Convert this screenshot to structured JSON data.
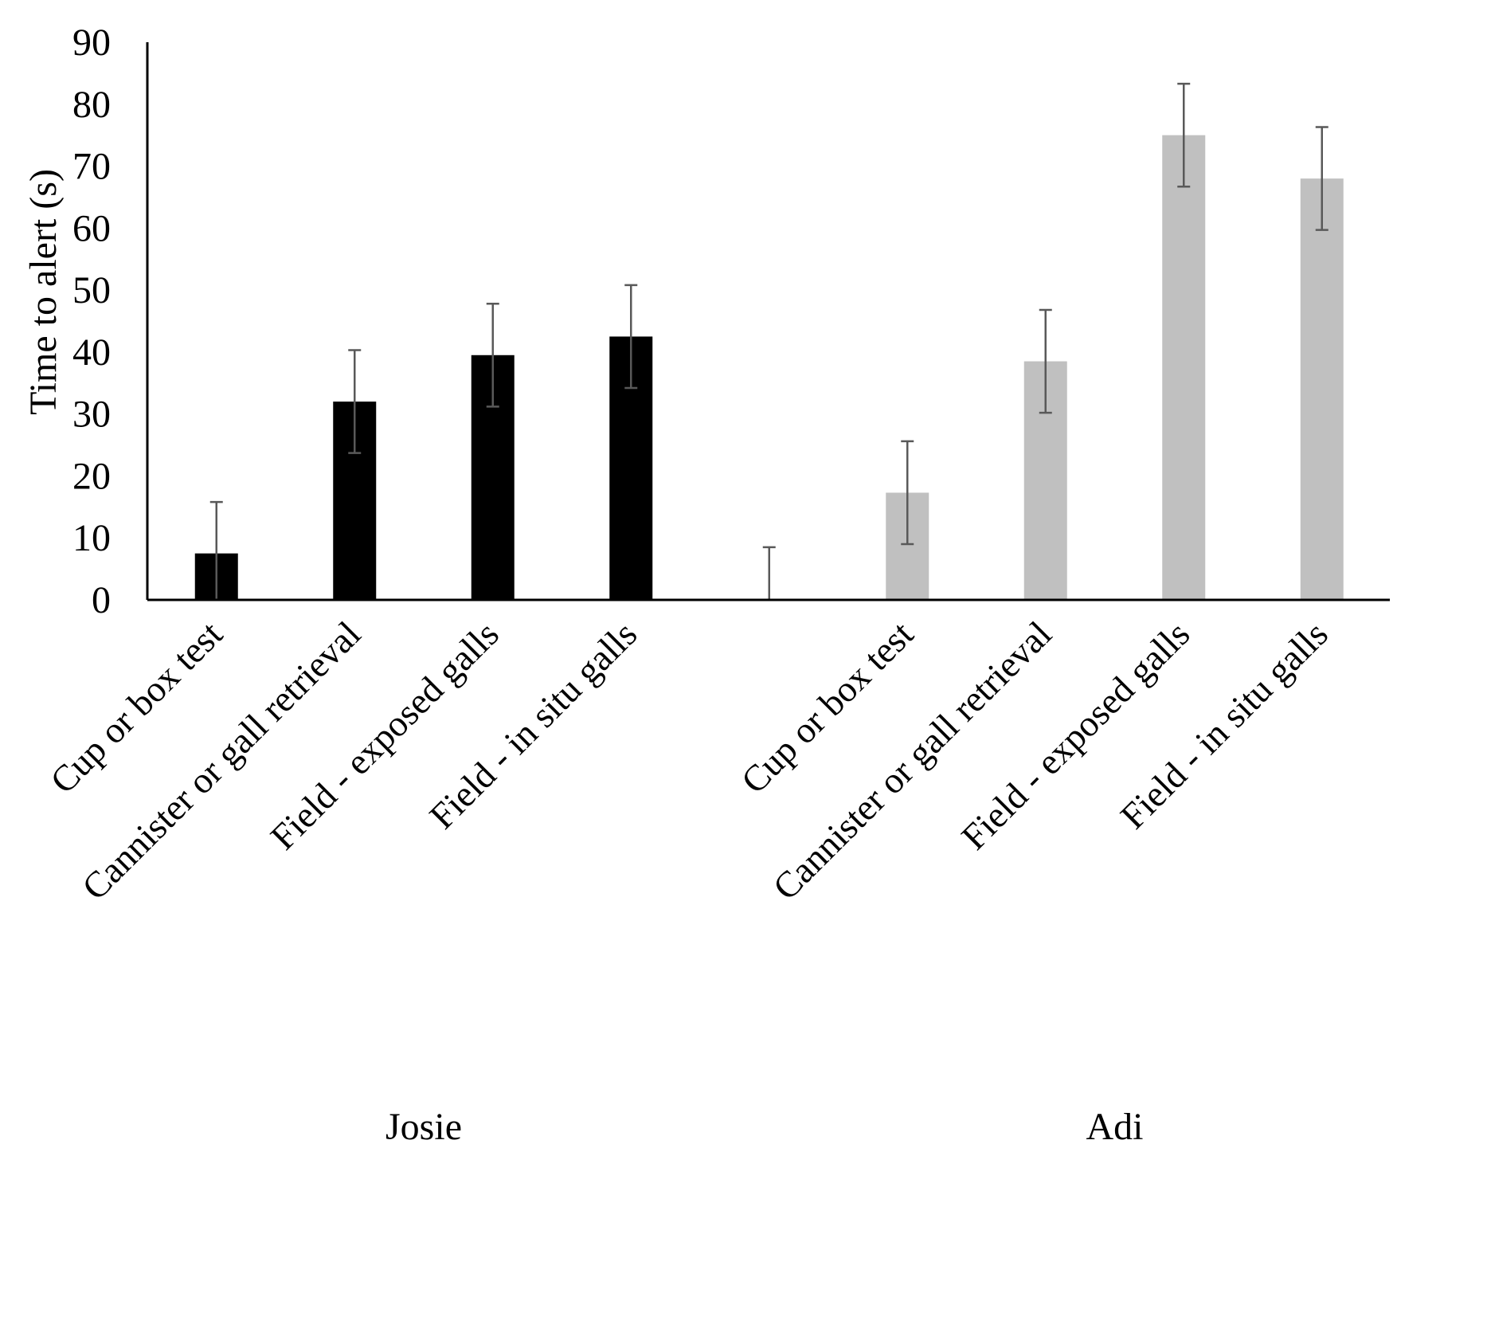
{
  "chart_data": {
    "type": "bar",
    "ylabel": "Time to alert (s)",
    "xlabel": "",
    "ylim": [
      0,
      90
    ],
    "yticks": [
      0,
      10,
      20,
      30,
      40,
      50,
      60,
      70,
      80,
      90
    ],
    "grid": false,
    "groups": [
      {
        "name": "Josie",
        "color": "#000000",
        "categories": [
          "Cup or box test",
          "Cannister or gall retrieval",
          "Field - exposed galls",
          "Field - in situ galls"
        ],
        "values": [
          7.5,
          32,
          39.5,
          42.5
        ],
        "errors": [
          8.3,
          8.3,
          8.3,
          8.3
        ]
      },
      {
        "name": "Adi",
        "color": "#c0c0c0",
        "categories": [
          "",
          "Cup or box test",
          "Cannister or gall retrieval",
          "Field - exposed galls",
          "Field - in situ galls"
        ],
        "values": [
          0,
          17.3,
          38.5,
          75,
          68
        ],
        "errors": [
          8.5,
          8.3,
          8.3,
          8.3,
          8.3
        ]
      }
    ]
  }
}
